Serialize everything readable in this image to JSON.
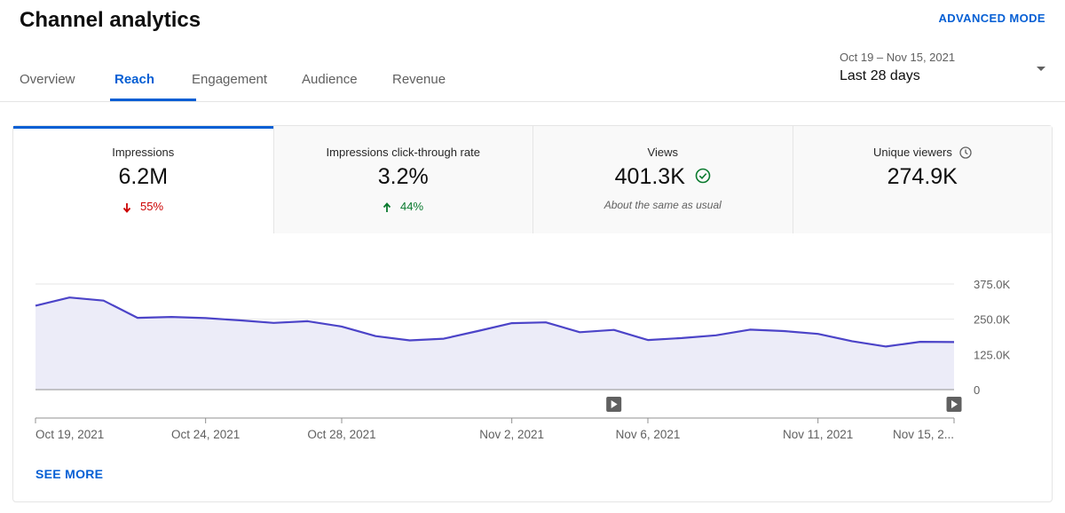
{
  "header": {
    "title": "Channel analytics",
    "advanced_mode_label": "ADVANCED MODE"
  },
  "tabs": [
    {
      "label": "Overview",
      "active": false
    },
    {
      "label": "Reach",
      "active": true
    },
    {
      "label": "Engagement",
      "active": false
    },
    {
      "label": "Audience",
      "active": false
    },
    {
      "label": "Revenue",
      "active": false
    }
  ],
  "date_range": {
    "range": "Oct 19 – Nov 15, 2021",
    "period": "Last 28 days",
    "icon": "caret-down-icon"
  },
  "metrics": [
    {
      "label": "Impressions",
      "value": "6.2M",
      "delta": "55%",
      "direction": "down"
    },
    {
      "label": "Impressions click-through rate",
      "value": "3.2%",
      "delta": "44%",
      "direction": "up"
    },
    {
      "label": "Views",
      "value": "401.3K",
      "note": "About the same as usual",
      "icon": "check-circle-icon"
    },
    {
      "label": "Unique viewers",
      "value": "274.9K",
      "icon": "clock-icon"
    }
  ],
  "chart_data": {
    "type": "area",
    "x": [
      "Oct 19",
      "Oct 20",
      "Oct 21",
      "Oct 22",
      "Oct 23",
      "Oct 24",
      "Oct 25",
      "Oct 26",
      "Oct 27",
      "Oct 28",
      "Oct 29",
      "Oct 30",
      "Oct 31",
      "Nov 1",
      "Nov 2",
      "Nov 3",
      "Nov 4",
      "Nov 5",
      "Nov 6",
      "Nov 7",
      "Nov 8",
      "Nov 9",
      "Nov 10",
      "Nov 11",
      "Nov 12",
      "Nov 13",
      "Nov 14",
      "Nov 15"
    ],
    "values": [
      298000,
      327000,
      316000,
      255000,
      258000,
      254000,
      246000,
      237000,
      243000,
      224000,
      190000,
      175000,
      181000,
      208000,
      236000,
      239000,
      204000,
      212000,
      176000,
      183000,
      193000,
      213000,
      208000,
      198000,
      172000,
      153000,
      170000,
      169000
    ],
    "y_ticks": [
      "375.0K",
      "250.0K",
      "125.0K",
      "0"
    ],
    "x_tick_labels": [
      {
        "index": 0,
        "label": "Oct 19, 2021"
      },
      {
        "index": 5,
        "label": "Oct 24, 2021"
      },
      {
        "index": 9,
        "label": "Oct 28, 2021"
      },
      {
        "index": 14,
        "label": "Nov 2, 2021"
      },
      {
        "index": 18,
        "label": "Nov 6, 2021"
      },
      {
        "index": 23,
        "label": "Nov 11, 2021"
      },
      {
        "index": 27,
        "label": "Nov 15, 2..."
      }
    ],
    "video_markers": [
      17,
      27
    ],
    "ylim": [
      0,
      375000
    ],
    "grid": true,
    "line_color": "#4c44c8",
    "fill_color": "#ececf8"
  },
  "see_more_label": "SEE MORE"
}
